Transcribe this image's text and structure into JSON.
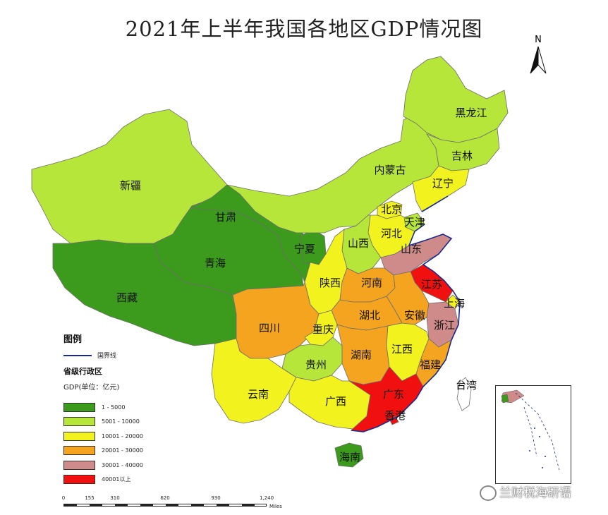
{
  "title": "2021年上半年我国各地区GDP情况图",
  "north_label": "N",
  "legend": {
    "title": "图例",
    "border_label": "国界线",
    "subtitle": "省级行政区",
    "unit": "GDP(单位：亿元)",
    "items": [
      {
        "label": "1 - 5000",
        "color": "#3c9a1c"
      },
      {
        "label": "5001 - 10000",
        "color": "#b7e63b"
      },
      {
        "label": "10001 - 20000",
        "color": "#f2f21f"
      },
      {
        "label": "20001 - 30000",
        "color": "#f5a41f"
      },
      {
        "label": "30001 - 40000",
        "color": "#cf8a8a"
      },
      {
        "label": "40001以上",
        "color": "#f01010"
      }
    ]
  },
  "scale": {
    "ticks": [
      "0",
      "155",
      "310",
      "620",
      "930",
      "1,240"
    ],
    "unit": "Miles"
  },
  "provinces": [
    {
      "name": "新疆",
      "level": 2
    },
    {
      "name": "西藏",
      "level": 1
    },
    {
      "name": "青海",
      "level": 1
    },
    {
      "name": "甘肃",
      "level": 1
    },
    {
      "name": "宁夏",
      "level": 1
    },
    {
      "name": "内蒙古",
      "level": 2
    },
    {
      "name": "黑龙江",
      "level": 2
    },
    {
      "name": "吉林",
      "level": 2
    },
    {
      "name": "辽宁",
      "level": 3
    },
    {
      "name": "北京",
      "level": 3
    },
    {
      "name": "天津",
      "level": 2
    },
    {
      "name": "河北",
      "level": 3
    },
    {
      "name": "山西",
      "level": 2
    },
    {
      "name": "山东",
      "level": 5
    },
    {
      "name": "陕西",
      "level": 3
    },
    {
      "name": "河南",
      "level": 4
    },
    {
      "name": "江苏",
      "level": 6
    },
    {
      "name": "上海",
      "level": 3
    },
    {
      "name": "安徽",
      "level": 4
    },
    {
      "name": "湖北",
      "level": 4
    },
    {
      "name": "浙江",
      "level": 5
    },
    {
      "name": "四川",
      "level": 4
    },
    {
      "name": "重庆",
      "level": 3
    },
    {
      "name": "贵州",
      "level": 2
    },
    {
      "name": "湖南",
      "level": 4
    },
    {
      "name": "江西",
      "level": 3
    },
    {
      "name": "福建",
      "level": 4
    },
    {
      "name": "云南",
      "level": 3
    },
    {
      "name": "广西",
      "level": 3
    },
    {
      "name": "广东",
      "level": 6
    },
    {
      "name": "香港",
      "level": 6
    },
    {
      "name": "台湾",
      "level": 0
    },
    {
      "name": "海南",
      "level": 1
    }
  ],
  "watermark": "兰财税海研语"
}
